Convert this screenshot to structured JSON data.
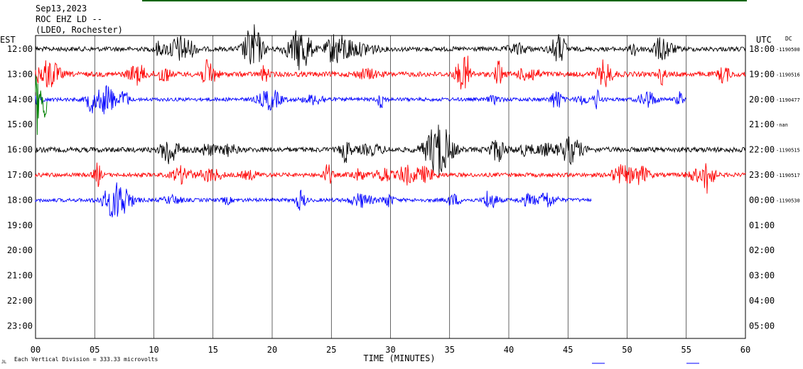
{
  "header": {
    "date": "Sep13,2023",
    "station": "ROC EHZ LD --",
    "network": "(LDEO, Rochester)"
  },
  "left_timezone": "EST",
  "right_timezone": "UTC",
  "dc_label": "DC",
  "footer": {
    "scale_note": "Each Vertical Division =  333.33 microvolts",
    "scale_icon": "JL"
  },
  "colors": {
    "cycle": [
      "#000000",
      "#ff0000",
      "#0000ff"
    ],
    "event": "#008000",
    "top_bar": "#006400",
    "grid": "#000000"
  },
  "chart_data": {
    "type": "line",
    "title": "ROC EHZ LD --",
    "xlabel": "TIME (MINUTES)",
    "ylabel": "",
    "xlim": [
      0,
      60
    ],
    "x_ticks": [
      "00",
      "05",
      "10",
      "15",
      "20",
      "25",
      "30",
      "35",
      "40",
      "45",
      "50",
      "55",
      "60"
    ],
    "grid": "vertical every 5 minutes",
    "series": [
      {
        "est": "12:00",
        "utc": "18:00",
        "dc": "-1190500",
        "color": "#000000",
        "end_minute": 60,
        "activity": 1.0
      },
      {
        "est": "13:00",
        "utc": "19:00",
        "dc": "-1190516",
        "color": "#ff0000",
        "end_minute": 60,
        "activity": 1.1
      },
      {
        "est": "14:00",
        "utc": "20:00",
        "dc": "-1190477",
        "color": "#0000ff",
        "end_minute": 55,
        "activity": 0.8
      },
      {
        "est": "15:00",
        "utc": "21:00",
        "dc": "-nan",
        "color": "#000000",
        "end_minute": 0,
        "activity": 0
      },
      {
        "est": "16:00",
        "utc": "22:00",
        "dc": "-1190515",
        "color": "#000000",
        "end_minute": 60,
        "activity": 1.1
      },
      {
        "est": "17:00",
        "utc": "23:00",
        "dc": "-1190517",
        "color": "#ff0000",
        "end_minute": 60,
        "activity": 0.9
      },
      {
        "est": "18:00",
        "utc": "00:00",
        "dc": "-1190530",
        "color": "#0000ff",
        "end_minute": 47,
        "activity": 0.8
      },
      {
        "est": "19:00",
        "utc": "01:00",
        "dc": "",
        "color": "#000000",
        "end_minute": 0,
        "activity": 0
      },
      {
        "est": "20:00",
        "utc": "02:00",
        "dc": "",
        "color": "#000000",
        "end_minute": 0,
        "activity": 0
      },
      {
        "est": "21:00",
        "utc": "03:00",
        "dc": "",
        "color": "#000000",
        "end_minute": 0,
        "activity": 0
      },
      {
        "est": "22:00",
        "utc": "04:00",
        "dc": "",
        "color": "#000000",
        "end_minute": 0,
        "activity": 0
      },
      {
        "est": "23:00",
        "utc": "05:00",
        "dc": "",
        "color": "#000000",
        "end_minute": 0,
        "activity": 0
      }
    ],
    "event_marker": {
      "hour_index": 2,
      "start_minute": 0.0,
      "end_minute": 1.0,
      "color": "#008000"
    }
  }
}
